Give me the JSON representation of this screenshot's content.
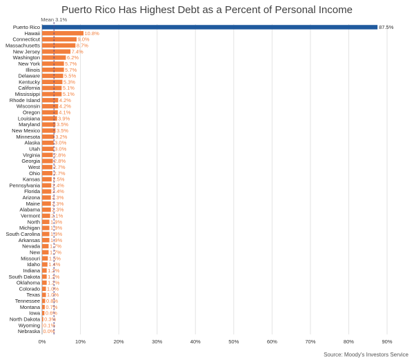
{
  "chart_data": {
    "type": "bar",
    "orientation": "horizontal",
    "title": "Puerto Rico Has Highest Debt as a Percent of Personal Income",
    "source": "Source: Moody's Investors Service",
    "mean_label": "Mean 3.1%",
    "mean_value": 3.1,
    "xlim": [
      0,
      90
    ],
    "xticks": [
      "0%",
      "10%",
      "20%",
      "30%",
      "40%",
      "50%",
      "60%",
      "70%",
      "80%",
      "90%"
    ],
    "categories": [
      "Puerto Rico",
      "Hawaii",
      "Connecticut",
      "Massachusetts",
      "New Jersey",
      "Washington",
      "New York",
      "Illinois",
      "Delaware",
      "Kentucky",
      "California",
      "Mississippi",
      "Rhode Island",
      "Wisconsin",
      "Oregon",
      "Louisiana",
      "Maryland",
      "New Mexico",
      "Minnesota",
      "Alaska",
      "Utah",
      "Virginia",
      "Georgia",
      "West",
      "Ohio",
      "Kansas",
      "Pennsylvania",
      "Florida",
      "Arizona",
      "Maine",
      "Alabama",
      "Vermont",
      "North",
      "Michigan",
      "South Carolina",
      "Arkansas",
      "Nevada",
      "New",
      "Missouri",
      "Idaho",
      "Indiana",
      "South Dakota",
      "Oklahoma",
      "Colorado",
      "Texas",
      "Tennessee",
      "Montana",
      "Iowa",
      "North Dakota",
      "Wyoming",
      "Nebraska"
    ],
    "values": [
      87.5,
      10.8,
      9.0,
      8.7,
      7.4,
      6.2,
      5.7,
      5.7,
      5.5,
      5.3,
      5.1,
      5.1,
      4.2,
      4.2,
      4.1,
      3.9,
      3.5,
      3.5,
      3.2,
      3.0,
      3.0,
      2.8,
      2.8,
      2.7,
      2.7,
      2.5,
      2.4,
      2.4,
      2.3,
      2.3,
      2.3,
      2.1,
      1.9,
      1.9,
      1.9,
      1.9,
      1.7,
      1.7,
      1.5,
      1.4,
      1.2,
      1.2,
      1.2,
      1.0,
      1.0,
      0.8,
      0.7,
      0.6,
      0.3,
      0.1,
      0.0
    ],
    "value_labels": [
      "87.5%",
      "10.8%",
      "9.0%",
      "8.7%",
      "7.4%",
      "6.2%",
      "5.7%",
      "5.7%",
      "5.5%",
      "5.3%",
      "5.1%",
      "5.1%",
      "4.2%",
      "4.2%",
      "4.1%",
      "3.9%",
      "3.5%",
      "3.5%",
      "3.2%",
      "3.0%",
      "3.0%",
      "2.8%",
      "2.8%",
      "2.7%",
      "2.7%",
      "2.5%",
      "2.4%",
      "2.4%",
      "2.3%",
      "2.3%",
      "2.3%",
      "2.1%",
      "1.9%",
      "1.9%",
      "1.9%",
      "1.9%",
      "1.7%",
      "1.7%",
      "1.5%",
      "1.4%",
      "1.2%",
      "1.2%",
      "1.2%",
      "1.0%",
      "1.0%",
      "0.8%",
      "0.7%",
      "0.6%",
      "0.3%",
      "0.1%",
      "0.0%"
    ],
    "highlight_index": 0,
    "colors": {
      "highlight": "#1f5a9e",
      "bar": "#f27f3d",
      "label": "#f27f3d",
      "highlight_label": "#ffffff",
      "mean_line": "#5a4a8a"
    },
    "grid": true,
    "legend": "none"
  }
}
